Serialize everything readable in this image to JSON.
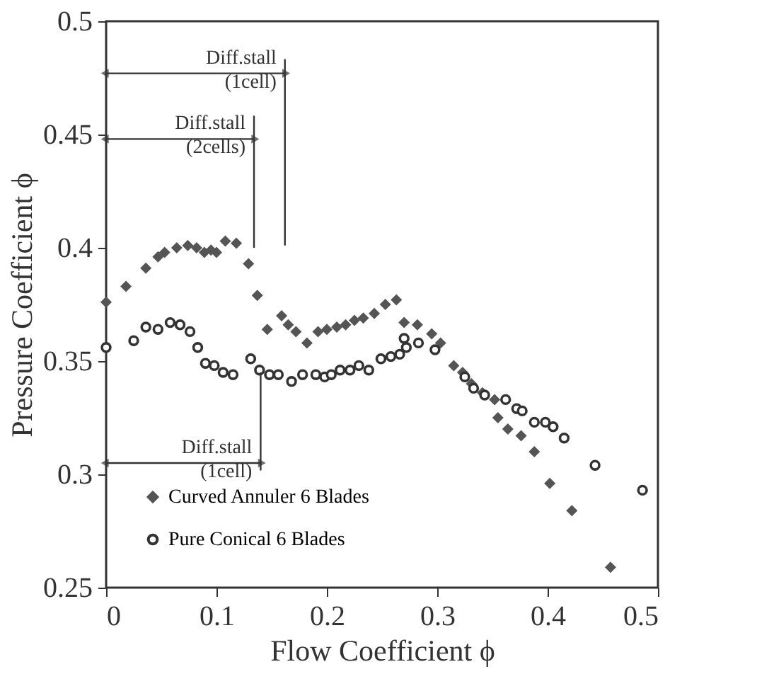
{
  "chart_data": {
    "type": "scatter",
    "xlabel": "Flow Coefficient ϕ",
    "ylabel": "Pressure Coefficient ϕ",
    "xlim": [
      0,
      0.5
    ],
    "ylim": [
      0.25,
      0.5
    ],
    "xticks": [
      0,
      0.1,
      0.2,
      0.3,
      0.4,
      0.5
    ],
    "yticks": [
      0.25,
      0.3,
      0.35,
      0.4,
      0.45,
      0.5
    ],
    "grid": false,
    "legend": "bottom left",
    "series": [
      {
        "name": "Curved Annuler 6 Blades",
        "color": "#555555",
        "marker": "diamond",
        "x": [
          0,
          0.018,
          0.036,
          0.047,
          0.053,
          0.064,
          0.074,
          0.082,
          0.089,
          0.095,
          0.1,
          0.108,
          0.118,
          0.129,
          0.137,
          0.146,
          0.159,
          0.165,
          0.172,
          0.182,
          0.192,
          0.2,
          0.209,
          0.217,
          0.225,
          0.233,
          0.243,
          0.253,
          0.263,
          0.27,
          0.282,
          0.295,
          0.303,
          0.315,
          0.323,
          0.331,
          0.341,
          0.352,
          0.355,
          0.364,
          0.376,
          0.388,
          0.402,
          0.422,
          0.457
        ],
        "values": [
          0.376,
          0.383,
          0.391,
          0.396,
          0.398,
          0.4,
          0.401,
          0.4,
          0.398,
          0.399,
          0.398,
          0.403,
          0.402,
          0.393,
          0.379,
          0.364,
          0.37,
          0.366,
          0.363,
          0.358,
          0.363,
          0.364,
          0.365,
          0.366,
          0.368,
          0.369,
          0.371,
          0.375,
          0.377,
          0.367,
          0.366,
          0.362,
          0.358,
          0.348,
          0.345,
          0.34,
          0.336,
          0.333,
          0.325,
          0.32,
          0.317,
          0.31,
          0.296,
          0.284,
          0.259
        ]
      },
      {
        "name": "Pure Conical 6 Blades",
        "color": "#333333",
        "marker": "circle",
        "x": [
          0,
          0.025,
          0.036,
          0.047,
          0.058,
          0.067,
          0.076,
          0.083,
          0.09,
          0.098,
          0.106,
          0.115,
          0.131,
          0.139,
          0.148,
          0.156,
          0.168,
          0.178,
          0.19,
          0.198,
          0.204,
          0.212,
          0.221,
          0.229,
          0.238,
          0.249,
          0.258,
          0.266,
          0.27,
          0.272,
          0.283,
          0.298,
          0.325,
          0.333,
          0.343,
          0.362,
          0.372,
          0.377,
          0.388,
          0.398,
          0.405,
          0.415,
          0.443,
          0.486
        ],
        "values": [
          0.356,
          0.359,
          0.365,
          0.364,
          0.367,
          0.366,
          0.363,
          0.356,
          0.349,
          0.348,
          0.345,
          0.344,
          0.351,
          0.346,
          0.344,
          0.344,
          0.341,
          0.344,
          0.344,
          0.343,
          0.344,
          0.346,
          0.346,
          0.348,
          0.346,
          0.351,
          0.352,
          0.353,
          0.36,
          0.356,
          0.358,
          0.355,
          0.343,
          0.338,
          0.335,
          0.333,
          0.329,
          0.328,
          0.323,
          0.323,
          0.321,
          0.316,
          0.304,
          0.293
        ]
      },
      {
        "type": "line",
        "color": "#333333",
        "marker": "triangle",
        "x": [
          0,
          0.162,
          0.162,
          0.162
        ],
        "values": [
          0.477,
          0.477,
          0.483,
          0.401
        ]
      },
      {
        "type": "line",
        "color": "#333333",
        "marker": "triangle",
        "x": [
          0,
          0.134,
          0.134,
          0.134
        ],
        "values": [
          0.448,
          0.448,
          0.458,
          0.4
        ]
      },
      {
        "type": "line",
        "color": "#333333",
        "marker": "triangle",
        "x": [
          0,
          0.14,
          0.14,
          0.14
        ],
        "values": [
          0.305,
          0.305,
          0.302,
          0.345
        ]
      }
    ],
    "annotations": [
      {
        "text": "Diff.stall\n(1cell)",
        "x": 0.162,
        "y": 0.477
      },
      {
        "text": "Diff.stall\n(2cells)",
        "x": 0.134,
        "y": 0.448
      },
      {
        "text": "Diff.stall\n(1cell)",
        "x": 0.14,
        "y": 0.305
      }
    ]
  }
}
